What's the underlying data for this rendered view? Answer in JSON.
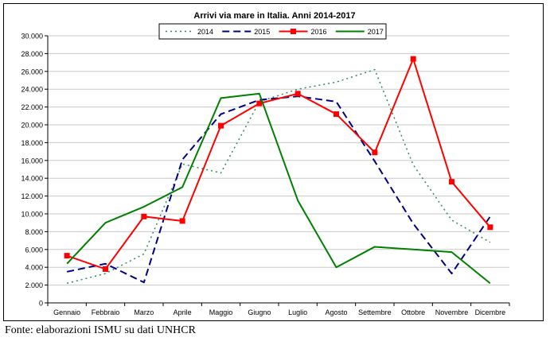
{
  "chart_data": {
    "type": "line",
    "title": "Arrivi via mare in Italia. Anni 2014-2017",
    "xlabel": "",
    "ylabel": "",
    "ylim": [
      0,
      30000
    ],
    "yticks": [
      "0",
      "2.000",
      "4.000",
      "6.000",
      "8.000",
      "10.000",
      "12.000",
      "14.000",
      "16.000",
      "18.000",
      "20.000",
      "22.000",
      "24.000",
      "26.000",
      "28.000",
      "30.000"
    ],
    "grid": true,
    "legend_position": "top",
    "categories": [
      "Gennaio",
      "Febbraio",
      "Marzo",
      "Aprile",
      "Maggio",
      "Giugno",
      "Luglio",
      "Agosto",
      "Settembre",
      "Ottobre",
      "Novembre",
      "Dicembre"
    ],
    "series": [
      {
        "name": "2014",
        "color": "#2e8b57",
        "style": "dotted",
        "values": [
          2200,
          3300,
          5500,
          15600,
          14600,
          22600,
          24000,
          24800,
          26200,
          15500,
          9300,
          6800
        ]
      },
      {
        "name": "2015",
        "color": "#000080",
        "style": "dashed",
        "values": [
          3500,
          4400,
          2300,
          16100,
          21200,
          22800,
          23200,
          22600,
          15900,
          8900,
          3300,
          9700
        ]
      },
      {
        "name": "2016",
        "color": "#ff0000",
        "style": "solid-marker",
        "values": [
          5300,
          3800,
          9700,
          9200,
          19900,
          22400,
          23500,
          21200,
          16900,
          27400,
          13600,
          8500
        ]
      },
      {
        "name": "2017",
        "color": "#008000",
        "style": "solid",
        "values": [
          4400,
          9000,
          10800,
          13000,
          23000,
          23500,
          11500,
          4000,
          6300,
          6000,
          5700,
          2200
        ]
      }
    ]
  },
  "footer": {
    "source": "Fonte: elaborazioni ISMU su dati UNHCR"
  }
}
